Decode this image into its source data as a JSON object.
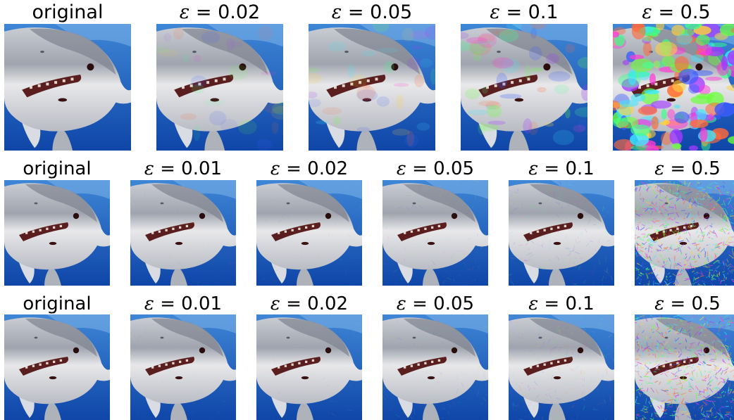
{
  "colors": {
    "water_top": "#3e86d6",
    "water_bottom": "#0f46a8",
    "shark_body": "#9fa4ae",
    "shark_belly": "#e8e8ea",
    "mouth": "#5a1e1e"
  },
  "rows": [
    {
      "name": "row-1",
      "panels": [
        {
          "label_kind": "original",
          "text": "original",
          "noise": 0
        },
        {
          "label_kind": "epsilon",
          "text": "= 0.02",
          "noise": 0.02,
          "pattern": "blobs"
        },
        {
          "label_kind": "epsilon",
          "text": "= 0.05",
          "noise": 0.05,
          "pattern": "blobs"
        },
        {
          "label_kind": "epsilon",
          "text": "= 0.1",
          "noise": 0.1,
          "pattern": "blobs"
        },
        {
          "label_kind": "epsilon",
          "text": "= 0.5",
          "noise": 0.5,
          "pattern": "blobs"
        }
      ]
    },
    {
      "name": "row-2",
      "panels": [
        {
          "label_kind": "original",
          "text": "original",
          "noise": 0
        },
        {
          "label_kind": "epsilon",
          "text": "= 0.01",
          "noise": 0.01,
          "pattern": "texture"
        },
        {
          "label_kind": "epsilon",
          "text": "= 0.02",
          "noise": 0.02,
          "pattern": "texture"
        },
        {
          "label_kind": "epsilon",
          "text": "= 0.05",
          "noise": 0.05,
          "pattern": "texture"
        },
        {
          "label_kind": "epsilon",
          "text": "= 0.1",
          "noise": 0.1,
          "pattern": "texture"
        },
        {
          "label_kind": "epsilon",
          "text": "= 0.5",
          "noise": 0.5,
          "pattern": "texture"
        }
      ]
    },
    {
      "name": "row-3",
      "panels": [
        {
          "label_kind": "original",
          "text": "original",
          "noise": 0
        },
        {
          "label_kind": "epsilon",
          "text": "= 0.01",
          "noise": 0.01,
          "pattern": "texture"
        },
        {
          "label_kind": "epsilon",
          "text": "= 0.02",
          "noise": 0.02,
          "pattern": "texture"
        },
        {
          "label_kind": "epsilon",
          "text": "= 0.05",
          "noise": 0.05,
          "pattern": "texture"
        },
        {
          "label_kind": "epsilon",
          "text": "= 0.1",
          "noise": 0.1,
          "pattern": "texture"
        },
        {
          "label_kind": "epsilon",
          "text": "= 0.5",
          "noise": 0.5,
          "pattern": "texture"
        }
      ]
    }
  ]
}
